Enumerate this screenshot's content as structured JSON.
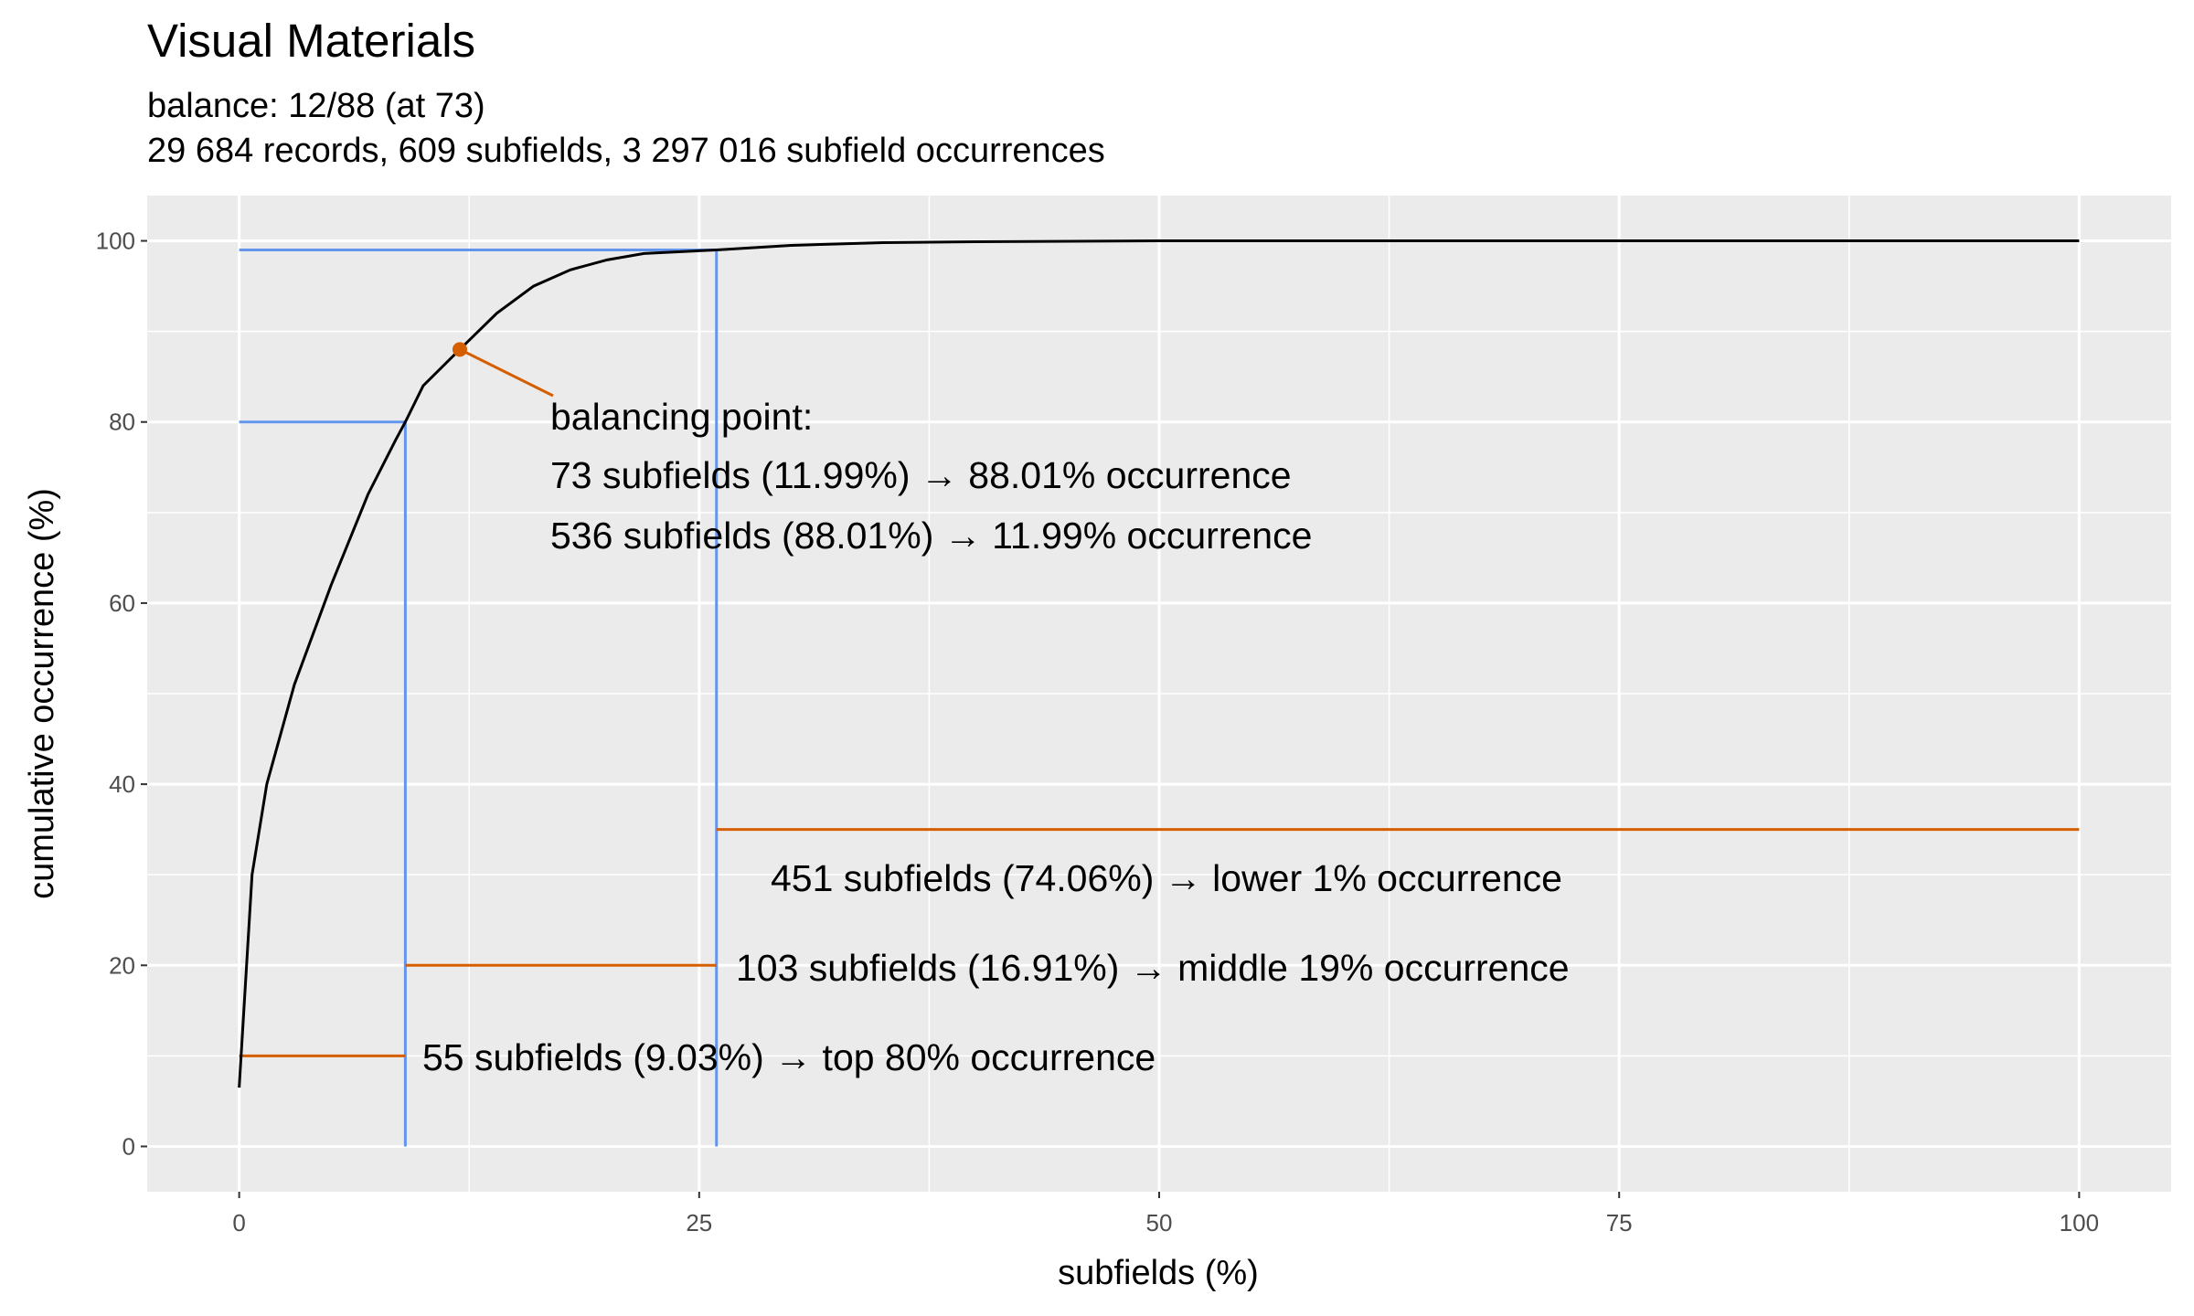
{
  "chart_data": {
    "type": "line",
    "title": "Visual Materials",
    "subtitle": [
      "balance: 12/88 (at 73)",
      "29 684 records, 609 subfields, 3 297 016 subfield occurrences"
    ],
    "xlabel": "subfields (%)",
    "ylabel": "cumulative occurrence (%)",
    "xlim": [
      -5,
      105
    ],
    "ylim": [
      -5,
      105
    ],
    "xticks": [
      0,
      25,
      50,
      75,
      100
    ],
    "yticks": [
      0,
      20,
      40,
      60,
      80,
      100
    ],
    "grid": true,
    "series": [
      {
        "color": "#000000",
        "x": [
          0,
          0.7,
          1.5,
          3,
          5,
          7,
          8.5,
          9.03,
          10,
          11.99,
          14,
          16,
          18,
          20,
          22,
          25.94,
          30,
          35,
          40,
          50,
          75,
          100
        ],
        "values": [
          6.5,
          30,
          40,
          51,
          62,
          72,
          78,
          80,
          84,
          88.01,
          92,
          95,
          96.8,
          97.9,
          98.6,
          99,
          99.5,
          99.8,
          99.9,
          100,
          100,
          100
        ]
      }
    ],
    "reference_lines": {
      "color": "#6495ed",
      "points": [
        {
          "x": 9.03,
          "y": 80
        },
        {
          "x": 25.94,
          "y": 99
        }
      ]
    },
    "segments": {
      "color": "#d55e00",
      "items": [
        {
          "x": [
            0,
            9.03
          ],
          "y": 10,
          "label": "55 subfields (9.03%) → top 80% occurrence"
        },
        {
          "x": [
            9.03,
            25.94
          ],
          "y": 20,
          "label": "103 subfields (16.91%) → middle 19% occurrence"
        },
        {
          "x": [
            25.94,
            100
          ],
          "y": 35,
          "label": "451 subfields (74.06%) → lower 1% occurrence"
        }
      ]
    },
    "balancing_point": {
      "x": 11.99,
      "y": 88.01,
      "color": "#d55e00",
      "label": [
        "balancing point:",
        "73 subfields (11.99%) → 88.01% occurrence",
        "536 subfields (88.01%) → 11.99% occurrence"
      ]
    }
  }
}
